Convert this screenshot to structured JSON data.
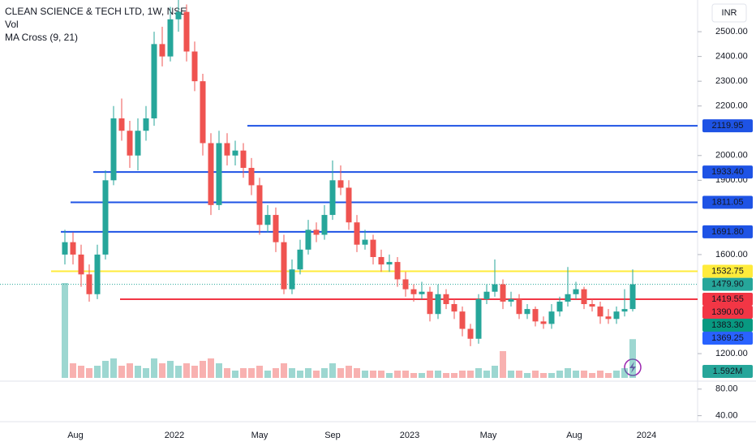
{
  "chart_data": {
    "type": "candlestick",
    "title": "CLEAN SCIENCE & TECH LTD, 1W, NSE",
    "indicators": [
      "Vol",
      "MA Cross (9, 21)"
    ],
    "currency": "INR",
    "up_color": "#26a69a",
    "down_color": "#ef5350",
    "ylim": [
      1102,
      2628
    ],
    "yticks": [
      {
        "value": 2500,
        "label": "2500.00"
      },
      {
        "value": 2400,
        "label": "2400.00"
      },
      {
        "value": 2300,
        "label": "2300.00"
      },
      {
        "value": 2200,
        "label": "2200.00"
      },
      {
        "value": 2000,
        "label": "2000.00"
      },
      {
        "value": 1900,
        "label": "1900.00"
      },
      {
        "value": 1600,
        "label": "1600.00"
      },
      {
        "value": 1200,
        "label": "1200.00"
      }
    ],
    "y2lim": [
      31,
      92
    ],
    "y2ticks": [
      {
        "value": 80,
        "label": "80.00"
      },
      {
        "value": 40,
        "label": "40.00"
      }
    ],
    "x_labels": [
      "Aug",
      "2022",
      "May",
      "Sep",
      "2023",
      "May",
      "Aug",
      "2024"
    ],
    "candles": [
      [
        1600,
        1700,
        1560,
        1650
      ],
      [
        1650,
        1690,
        1560,
        1600
      ],
      [
        1600,
        1640,
        1470,
        1520
      ],
      [
        1520,
        1560,
        1410,
        1440
      ],
      [
        1440,
        1640,
        1420,
        1600
      ],
      [
        1600,
        1940,
        1580,
        1900
      ],
      [
        1900,
        2200,
        1880,
        2150
      ],
      [
        2150,
        2230,
        2060,
        2100
      ],
      [
        2100,
        2140,
        1950,
        2000
      ],
      [
        2000,
        2150,
        1940,
        2100
      ],
      [
        2100,
        2200,
        2060,
        2150
      ],
      [
        2150,
        2500,
        2120,
        2450
      ],
      [
        2450,
        2520,
        2360,
        2400
      ],
      [
        2400,
        2600,
        2380,
        2550
      ],
      [
        2550,
        2630,
        2500,
        2580
      ],
      [
        2580,
        2610,
        2380,
        2420
      ],
      [
        2420,
        2460,
        2260,
        2300
      ],
      [
        2300,
        2330,
        2000,
        2050
      ],
      [
        2050,
        2090,
        1760,
        1800
      ],
      [
        1800,
        2100,
        1780,
        2050
      ],
      [
        2050,
        2090,
        1960,
        2000
      ],
      [
        2000,
        2060,
        1960,
        2020
      ],
      [
        2020,
        2050,
        1910,
        1950
      ],
      [
        1950,
        1990,
        1840,
        1880
      ],
      [
        1880,
        1910,
        1680,
        1720
      ],
      [
        1720,
        1800,
        1690,
        1760
      ],
      [
        1760,
        1790,
        1610,
        1650
      ],
      [
        1650,
        1680,
        1440,
        1460
      ],
      [
        1460,
        1580,
        1440,
        1540
      ],
      [
        1540,
        1660,
        1520,
        1620
      ],
      [
        1620,
        1740,
        1600,
        1700
      ],
      [
        1700,
        1730,
        1650,
        1680
      ],
      [
        1680,
        1800,
        1660,
        1760
      ],
      [
        1760,
        1980,
        1740,
        1900
      ],
      [
        1900,
        1960,
        1840,
        1870
      ],
      [
        1870,
        1900,
        1700,
        1730
      ],
      [
        1730,
        1760,
        1610,
        1640
      ],
      [
        1640,
        1700,
        1620,
        1660
      ],
      [
        1660,
        1680,
        1560,
        1590
      ],
      [
        1590,
        1620,
        1530,
        1560
      ],
      [
        1560,
        1600,
        1530,
        1570
      ],
      [
        1570,
        1590,
        1470,
        1500
      ],
      [
        1500,
        1530,
        1430,
        1460
      ],
      [
        1460,
        1480,
        1410,
        1440
      ],
      [
        1440,
        1490,
        1420,
        1450
      ],
      [
        1450,
        1470,
        1330,
        1360
      ],
      [
        1360,
        1480,
        1340,
        1440
      ],
      [
        1440,
        1460,
        1380,
        1400
      ],
      [
        1400,
        1420,
        1340,
        1370
      ],
      [
        1370,
        1390,
        1270,
        1300
      ],
      [
        1300,
        1320,
        1230,
        1260
      ],
      [
        1260,
        1440,
        1240,
        1420
      ],
      [
        1420,
        1480,
        1400,
        1450
      ],
      [
        1450,
        1580,
        1430,
        1480
      ],
      [
        1480,
        1500,
        1380,
        1410
      ],
      [
        1410,
        1450,
        1390,
        1420
      ],
      [
        1420,
        1440,
        1340,
        1360
      ],
      [
        1360,
        1400,
        1340,
        1380
      ],
      [
        1380,
        1390,
        1310,
        1330
      ],
      [
        1330,
        1350,
        1300,
        1320
      ],
      [
        1320,
        1400,
        1300,
        1370
      ],
      [
        1370,
        1430,
        1350,
        1410
      ],
      [
        1410,
        1550,
        1390,
        1440
      ],
      [
        1440,
        1490,
        1420,
        1460
      ],
      [
        1460,
        1470,
        1380,
        1400
      ],
      [
        1400,
        1420,
        1370,
        1390
      ],
      [
        1390,
        1410,
        1320,
        1350
      ],
      [
        1350,
        1380,
        1320,
        1340
      ],
      [
        1340,
        1390,
        1320,
        1370
      ],
      [
        1370,
        1460,
        1350,
        1380
      ],
      [
        1380,
        1540,
        1370,
        1480
      ]
    ],
    "volume": [
      3.9,
      0.6,
      0.5,
      0.4,
      0.5,
      0.7,
      0.8,
      0.5,
      0.6,
      0.5,
      0.4,
      0.8,
      0.6,
      0.7,
      0.5,
      0.6,
      0.5,
      0.7,
      0.8,
      0.6,
      0.4,
      0.3,
      0.4,
      0.4,
      0.5,
      0.3,
      0.4,
      0.6,
      0.4,
      0.3,
      0.4,
      0.3,
      0.4,
      0.6,
      0.4,
      0.5,
      0.4,
      0.3,
      0.3,
      0.3,
      0.2,
      0.3,
      0.3,
      0.2,
      0.2,
      0.3,
      0.3,
      0.2,
      0.2,
      0.3,
      0.3,
      0.4,
      0.3,
      0.5,
      1.1,
      0.3,
      0.3,
      0.2,
      0.3,
      0.2,
      0.2,
      0.3,
      0.4,
      0.3,
      0.3,
      0.2,
      0.3,
      0.2,
      0.3,
      0.4,
      1.592
    ],
    "volume_lim": [
      0,
      6
    ],
    "volume_label": {
      "value": 1.592,
      "label": "1.592M",
      "color": "#26a69a"
    },
    "price_labels": [
      {
        "value": 2119.95,
        "label": "2119.95",
        "color": "#1e53e5",
        "style": "solid"
      },
      {
        "value": 1933.4,
        "label": "1933.40",
        "color": "#1e53e5",
        "style": "solid"
      },
      {
        "value": 1811.05,
        "label": "1811.05",
        "color": "#1e53e5",
        "style": "solid"
      },
      {
        "value": 1691.8,
        "label": "1691.80",
        "color": "#1e53e5",
        "style": "solid"
      },
      {
        "value": 1532.75,
        "label": "1532.75",
        "color": "#ffeb3b",
        "style": "solid"
      },
      {
        "value": 1479.9,
        "label": "1479.90",
        "color": "#26a69a",
        "style": "dotted"
      },
      {
        "value": 1419.55,
        "label": "1419.55",
        "color": "#f23645",
        "style": "solid"
      },
      {
        "value": 1390.0,
        "label": "1390.00",
        "color": "#f23645",
        "style": "none"
      },
      {
        "value": 1383.3,
        "label": "1383.30",
        "color": "#089981",
        "style": "none"
      },
      {
        "value": 1369.25,
        "label": "1369.25",
        "color": "#2962ff",
        "style": "none"
      }
    ]
  }
}
